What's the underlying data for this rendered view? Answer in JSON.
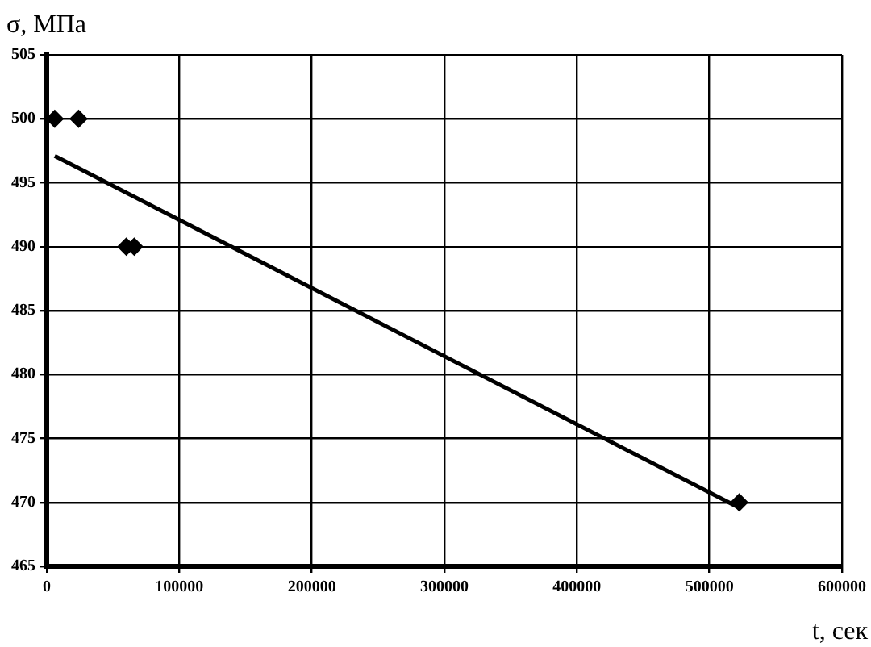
{
  "chart_data": {
    "type": "scatter",
    "xlabel": "t, сек",
    "ylabel": "σ, МПа",
    "series": [
      {
        "color": "#000000",
        "x": [
          6000,
          24000,
          60000,
          66000,
          522500
        ],
        "values": [
          500,
          500,
          490,
          490,
          470
        ],
        "marker": "diamond"
      },
      {
        "type": "line",
        "color": "#000000",
        "x": [
          6000,
          522000
        ],
        "values": [
          497.1,
          469.6
        ],
        "marker": "none"
      }
    ],
    "xlim": [
      0,
      600000
    ],
    "xticks": [
      0,
      100000,
      200000,
      300000,
      400000,
      500000,
      600000
    ],
    "ylim": [
      465,
      505
    ],
    "yticks": [
      465,
      470,
      475,
      480,
      485,
      490,
      495,
      500,
      505
    ],
    "grid": true,
    "legend": false
  }
}
